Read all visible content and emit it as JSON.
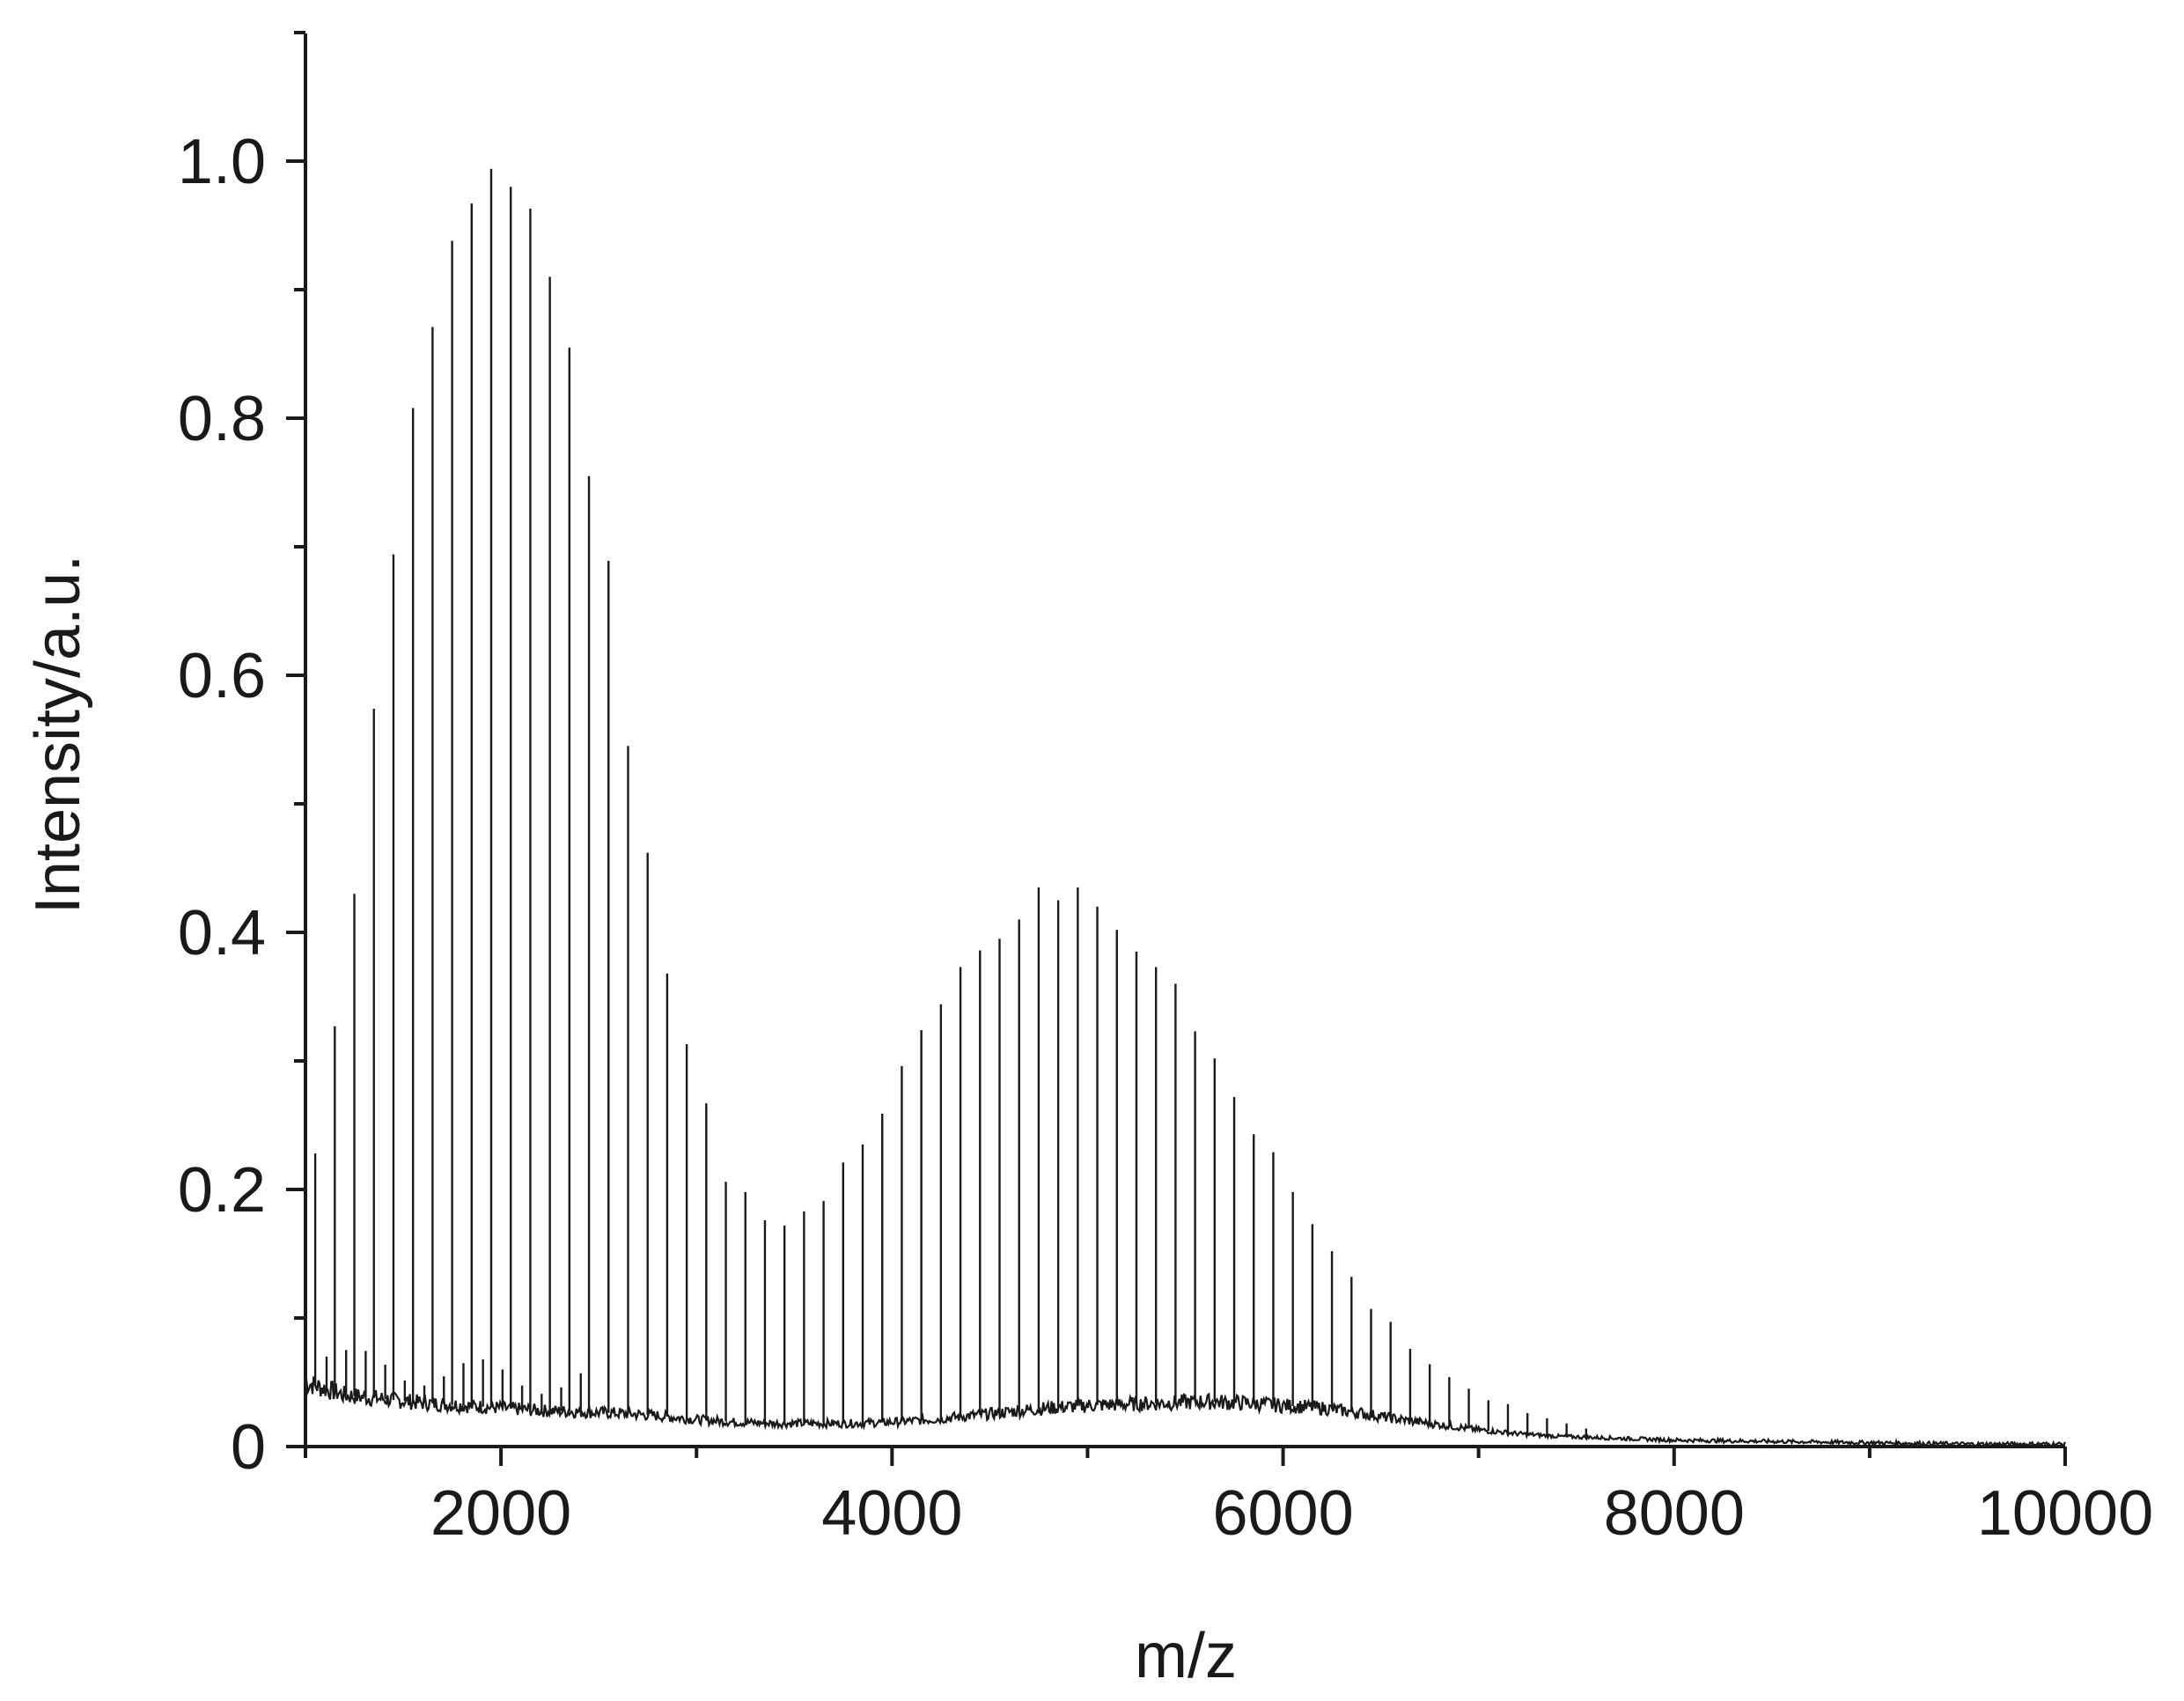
{
  "chart_data": {
    "type": "line",
    "xlabel": "m/z",
    "ylabel": "Intensity/a.u.",
    "xlim": [
      1000,
      10000
    ],
    "ylim": [
      0,
      1.1
    ],
    "x_ticks": [
      2000,
      4000,
      6000,
      8000,
      10000
    ],
    "x_tick_labels": [
      "2000",
      "4000",
      "6000",
      "8000",
      "10000"
    ],
    "y_ticks": [
      0,
      0.2,
      0.4,
      0.6,
      0.8,
      1.0
    ],
    "y_tick_labels": [
      "0",
      "0.2",
      "0.4",
      "0.6",
      "0.8",
      "1.0"
    ],
    "grid": false,
    "color": "#1a1a1a",
    "peaks": {
      "x": [
        1050,
        1150,
        1250,
        1350,
        1450,
        1550,
        1650,
        1750,
        1850,
        1950,
        2050,
        2150,
        2250,
        2350,
        2450,
        2550,
        2650,
        2750,
        2850,
        2950,
        3050,
        3150,
        3250,
        3350,
        3450,
        3550,
        3650,
        3750,
        3850,
        3950,
        4050,
        4150,
        4250,
        4350,
        4450,
        4550,
        4650,
        4750,
        4850,
        4950,
        5050,
        5150,
        5250,
        5350,
        5450,
        5550,
        5650,
        5750,
        5850,
        5950,
        6050,
        6150,
        6250,
        6350,
        6450,
        6550,
        6650,
        6750,
        6850,
        6950,
        7050,
        7150,
        7250,
        7350,
        7450,
        7550
      ],
      "y": [
        0.228,
        0.327,
        0.43,
        0.574,
        0.694,
        0.808,
        0.871,
        0.938,
        0.967,
        0.994,
        0.98,
        0.963,
        0.91,
        0.855,
        0.755,
        0.689,
        0.545,
        0.462,
        0.368,
        0.313,
        0.267,
        0.206,
        0.198,
        0.176,
        0.172,
        0.183,
        0.191,
        0.221,
        0.235,
        0.259,
        0.296,
        0.324,
        0.344,
        0.373,
        0.386,
        0.395,
        0.41,
        0.435,
        0.425,
        0.435,
        0.42,
        0.402,
        0.385,
        0.373,
        0.36,
        0.323,
        0.302,
        0.272,
        0.243,
        0.229,
        0.198,
        0.173,
        0.152,
        0.132,
        0.107,
        0.097,
        0.076,
        0.064,
        0.054,
        0.045,
        0.036,
        0.033,
        0.026,
        0.022,
        0.018,
        0.014
      ]
    },
    "baseline": {
      "x": [
        1000,
        1100,
        1200,
        1400,
        1600,
        1800,
        2000,
        2200,
        2400,
        2600,
        2800,
        3000,
        3200,
        3400,
        3600,
        3800,
        4000,
        4200,
        4400,
        4600,
        4800,
        5000,
        5200,
        5400,
        5600,
        5800,
        6000,
        6200,
        6400,
        6600,
        6800,
        7000,
        7200,
        7400,
        7600,
        7800,
        8000,
        8500,
        9000,
        9500,
        10000
      ],
      "y": [
        0.05,
        0.045,
        0.04,
        0.037,
        0.034,
        0.032,
        0.03,
        0.028,
        0.027,
        0.026,
        0.024,
        0.021,
        0.019,
        0.018,
        0.018,
        0.018,
        0.019,
        0.021,
        0.024,
        0.027,
        0.03,
        0.032,
        0.033,
        0.034,
        0.035,
        0.034,
        0.032,
        0.03,
        0.026,
        0.021,
        0.017,
        0.013,
        0.01,
        0.008,
        0.007,
        0.006,
        0.005,
        0.004,
        0.003,
        0.002,
        0.002
      ]
    }
  }
}
